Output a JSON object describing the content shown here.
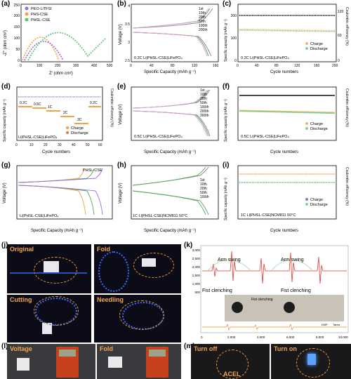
{
  "panels": {
    "a": "(a)",
    "b": "(b)",
    "c": "(c)",
    "d": "(d)",
    "e": "(e)",
    "f": "(f)",
    "g": "(g)",
    "h": "(h)",
    "i": "(i)",
    "j": "(j)",
    "k": "(k)",
    "l": "(l)",
    "m": "(m)"
  },
  "labels": {
    "a_x": "Z' (ohm cm²)",
    "a_y": "-Z'' (ohm cm²)",
    "cap_x": "Specific Capacity (mAh g⁻¹)",
    "volt_y": "Voltage (V)",
    "cyc_x": "Cycle numbers",
    "spec_y": "Specific capacity (mAh g⁻¹)",
    "ce_y": "Coulombic efficiency (%)",
    "b_note": "0.2C  Li|PHSL-CSE|LiFePO₄",
    "c_note": "0.2C  Li|PHSL-CSE|LiFePO₄",
    "d_note": "Li|PHSL-CSE|LiFePO₄",
    "e_note": "0.5C  Li|PHSL-CSE|LiFePO₄",
    "f_note": "0.5C  Li|PHSL-CSE|LiFePO₄",
    "g_note": "Li|PHSL-CSE|LiFePO₄",
    "g_title": "PHSL-CSE",
    "h_note": "1C   Li|PHSL-CSE|NCM811  50°C",
    "i_note": "1C   Li|PHSL-CSE|NCM811   50°C",
    "charge": "Charge",
    "discharge": "Discharge",
    "d_rates": [
      "0.2C",
      "0.5C",
      "1C",
      "2C",
      "3C",
      "0.2C"
    ],
    "b_legend": [
      "1st",
      "10th",
      "20th",
      "50th",
      "100th",
      "200th"
    ],
    "e_legend": [
      "1st",
      "10th",
      "20th",
      "50th",
      "100th",
      "200th",
      "300th"
    ],
    "h_legend": [
      "1st",
      "10th",
      "20th",
      "50th",
      "100th"
    ],
    "k_arm1": "Arm swing",
    "k_arm2": "Arm swing",
    "k_fist1": "Fist clenching",
    "k_fist2": "Fist clenching",
    "k_inset": "Fist clenching",
    "k_leg1": "ЕМР",
    "k_leg2": "Tareа",
    "j_original": "Original",
    "j_fold": "Fold",
    "j_cutting": "Cutting",
    "j_needling": "Needling",
    "l_voltage": "Voltage",
    "l_fold": "Fold",
    "m_off": "Turn off",
    "m_on": "Turn on",
    "m_acel": "ACEL"
  },
  "chart_data": [
    {
      "type": "scatter",
      "panel": "a",
      "series": [
        {
          "name": "PEO-LiTFSI",
          "color": "#9b6ee0"
        },
        {
          "name": "PHS-CSE",
          "color": "#f4a340"
        },
        {
          "name": "PHSL-CSE",
          "color": "#5cc470"
        }
      ],
      "xlim": [
        0,
        500
      ],
      "ylim": [
        0,
        250
      ],
      "xticks": [
        0,
        100,
        200,
        300,
        400,
        500
      ],
      "yticks": [
        0,
        50,
        100,
        150,
        200,
        250
      ]
    },
    {
      "type": "line",
      "panel": "b",
      "xlim": [
        0,
        160
      ],
      "ylim": [
        2.5,
        4.0
      ],
      "xticks": [
        0,
        20,
        40,
        60,
        80,
        100,
        120,
        140,
        160
      ],
      "yticks": [
        2.5,
        3.0,
        3.5,
        4.0
      ]
    },
    {
      "type": "scatter",
      "panel": "c",
      "xlim": [
        0,
        200
      ],
      "ylim": [
        0,
        250
      ],
      "xticks": [
        0,
        20,
        40,
        60,
        80,
        100,
        120,
        140,
        160,
        180,
        200
      ],
      "yticks": [
        0,
        50,
        100,
        150,
        200,
        250
      ],
      "y2ticks": [
        0,
        20,
        40,
        60,
        80,
        100,
        120
      ],
      "capacity": 150,
      "ce": 100
    },
    {
      "type": "scatter",
      "panel": "d",
      "xlim": [
        0,
        60
      ],
      "ylim": [
        0,
        250
      ],
      "xticks": [
        0,
        10,
        20,
        30,
        40,
        50,
        60
      ],
      "yticks": [
        0,
        50,
        100,
        150,
        200,
        250
      ],
      "steps": [
        160,
        153,
        142,
        118,
        82,
        160
      ]
    },
    {
      "type": "line",
      "panel": "e",
      "xlim": [
        0,
        160
      ],
      "ylim": [
        2.5,
        4.0
      ],
      "xticks": [
        0,
        20,
        40,
        60,
        80,
        100,
        120,
        140,
        160
      ],
      "yticks": [
        2.5,
        3.0,
        3.5,
        4.0
      ]
    },
    {
      "type": "scatter",
      "panel": "f",
      "xlim": [
        0,
        500
      ],
      "ylim": [
        0,
        250
      ],
      "xticks": [
        0,
        50,
        100,
        150,
        200,
        250,
        300,
        350,
        400,
        450,
        500
      ],
      "yticks": [
        0,
        50,
        100,
        150,
        200,
        250
      ],
      "y2ticks": [
        0,
        20,
        40,
        60,
        80,
        100,
        120
      ],
      "capacity": 150,
      "ce": 100
    },
    {
      "type": "line",
      "panel": "g",
      "xlim": [
        0,
        150
      ],
      "ylim": [
        2.0,
        4.0
      ],
      "xticks": [
        0,
        25,
        50,
        75,
        100,
        125,
        150
      ],
      "yticks": [
        2.0,
        2.5,
        3.0,
        3.5,
        4.0
      ]
    },
    {
      "type": "line",
      "panel": "h",
      "xlim": [
        0,
        200
      ],
      "ylim": [
        3.0,
        4.5
      ],
      "xticks": [
        0,
        20,
        40,
        60,
        80,
        100,
        120,
        140,
        160,
        180,
        200
      ],
      "yticks": [
        3.0,
        3.5,
        4.0,
        4.5
      ]
    },
    {
      "type": "scatter",
      "panel": "i",
      "xlim": [
        0,
        100
      ],
      "ylim": [
        0,
        250
      ],
      "xticks": [
        0,
        20,
        40,
        60,
        80,
        100
      ],
      "yticks": [
        0,
        50,
        100,
        150,
        200,
        250
      ],
      "y2ticks": [
        0,
        20,
        40,
        60,
        80,
        100,
        120
      ],
      "capacity": 180,
      "ce": 100
    },
    {
      "type": "line",
      "panel": "k",
      "xticks": [
        "0",
        "2.000",
        "4.000",
        "6.000",
        "8.000",
        "10.000"
      ],
      "yticks": [
        "3,000",
        "2,500",
        "2,000",
        "1,500",
        "1,000",
        "500"
      ]
    }
  ],
  "colors": {
    "purple": "#9b6ee0",
    "orange": "#f4a340",
    "green": "#5cc470",
    "charge": "#f7b26b",
    "discharge": "#7fd18d",
    "ce": "#333333",
    "signal_red": "#e53935",
    "signal_orange": "#f08a24",
    "photo_dark": "#0a0a14"
  }
}
